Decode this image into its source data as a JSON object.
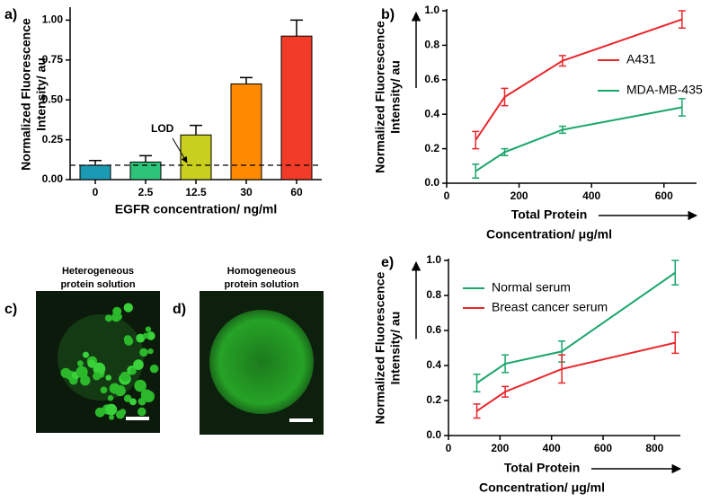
{
  "chart_data": [
    {
      "type": "bar",
      "panel": "a)",
      "ylabel": [
        "Normalized Fluorescence",
        "Intensity/ au"
      ],
      "xlabel": "EGFR concentration/ ng/ml",
      "categories": [
        "0",
        "2.5",
        "12.5",
        "30",
        "60"
      ],
      "values": [
        0.09,
        0.11,
        0.28,
        0.6,
        0.9
      ],
      "errors": [
        0.03,
        0.04,
        0.06,
        0.04,
        0.1
      ],
      "colors": [
        "#1b9bb3",
        "#2dc47a",
        "#c9cf1e",
        "#ff8a00",
        "#f23c28"
      ],
      "ylim": [
        0,
        1.07
      ],
      "yticks": [
        {
          "value": 0,
          "label": "0.00"
        },
        {
          "value": 0.25,
          "label": "0.25"
        },
        {
          "value": 0.5,
          "label": "0.50"
        },
        {
          "value": 0.75,
          "label": "0.75"
        },
        {
          "value": 1,
          "label": "1.00"
        }
      ],
      "lod": {
        "label": "LOD",
        "value": 0.09
      }
    },
    {
      "type": "line",
      "panel": "b)",
      "ylabel": [
        "Normalized Fluorescence",
        "Intensity/ au"
      ],
      "xlabel": [
        "Total Protein",
        "Concentration/ μg/ml"
      ],
      "x": [
        80,
        160,
        320,
        650
      ],
      "series": [
        {
          "name": "A431",
          "color": "#e8262b",
          "values": [
            0.25,
            0.5,
            0.71,
            0.95
          ],
          "errors": [
            0.05,
            0.05,
            0.03,
            0.05
          ]
        },
        {
          "name": "MDA-MB-435",
          "color": "#1aa56a",
          "values": [
            0.07,
            0.18,
            0.31,
            0.44
          ],
          "errors": [
            0.04,
            0.02,
            0.02,
            0.05
          ]
        }
      ],
      "xlim": [
        0,
        690
      ],
      "xticks": [
        0,
        200,
        400,
        600
      ],
      "ylim": [
        0,
        1
      ],
      "yticks": [
        {
          "value": 0,
          "label": "0.0"
        },
        0.2,
        0.4,
        0.6,
        0.8,
        {
          "value": 1,
          "label": "1.0"
        }
      ]
    },
    {
      "type": "line",
      "panel": "e)",
      "ylabel": [
        "Normalized Fluorescence",
        "Intensity/ au"
      ],
      "xlabel": [
        "Total Protein",
        "Concentration/ μg/ml"
      ],
      "x": [
        110,
        220,
        440,
        880
      ],
      "series": [
        {
          "name": "Normal serum",
          "color": "#1aa56a",
          "values": [
            0.3,
            0.41,
            0.48,
            0.93
          ],
          "errors": [
            0.05,
            0.05,
            0.06,
            0.07
          ]
        },
        {
          "name": "Breast cancer serum",
          "color": "#e8262b",
          "values": [
            0.14,
            0.25,
            0.38,
            0.53
          ],
          "errors": [
            0.04,
            0.03,
            0.08,
            0.06
          ]
        }
      ],
      "xlim": [
        0,
        900
      ],
      "xticks": [
        0,
        200,
        400,
        600,
        800
      ],
      "ylim": [
        0,
        1
      ],
      "yticks": [
        {
          "value": 0,
          "label": "0.0"
        },
        0.2,
        0.4,
        0.6,
        0.8,
        {
          "value": 1,
          "label": "1.0"
        }
      ]
    }
  ],
  "images": [
    {
      "panel": "c)",
      "title": [
        "Heterogeneous",
        "protein solution"
      ]
    },
    {
      "panel": "d)",
      "title": [
        "Homogeneous",
        "protein solution"
      ]
    }
  ]
}
